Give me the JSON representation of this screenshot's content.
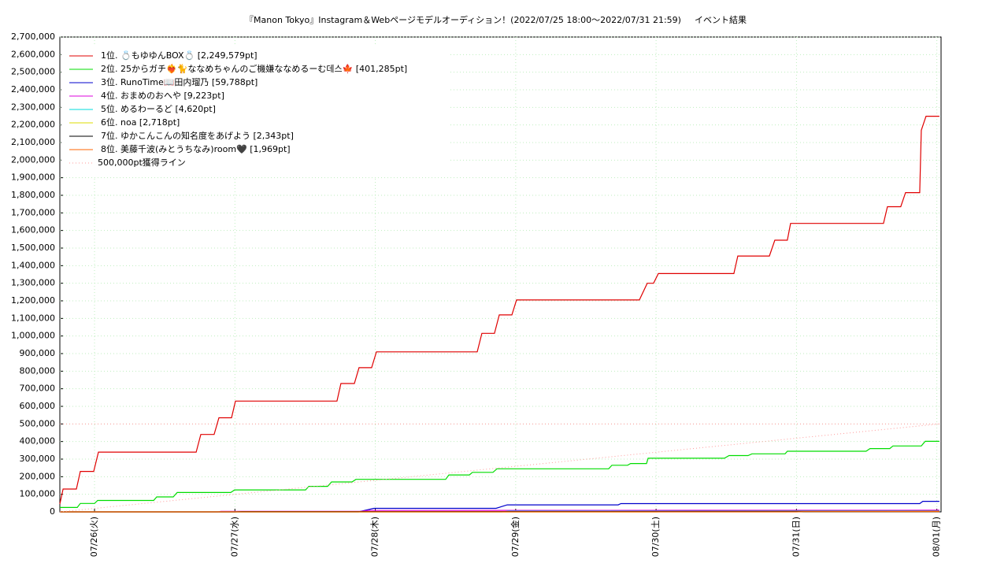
{
  "chart_data": {
    "type": "line",
    "title": "『Manon Tokyo』Instagram＆Webページモデルオーディション！(2022/07/25 18:00〜2022/07/31 21:59)",
    "subtitle": "イベント結果",
    "xlim": [
      0.753,
      7.03
    ],
    "xticks": [
      {
        "value": 1,
        "label": "07/26(火)"
      },
      {
        "value": 2,
        "label": "07/27(水)"
      },
      {
        "value": 3,
        "label": "07/28(木)"
      },
      {
        "value": 4,
        "label": "07/29(金)"
      },
      {
        "value": 5,
        "label": "07/30(土)"
      },
      {
        "value": 6,
        "label": "07/31(日)"
      },
      {
        "value": 7,
        "label": "08/01(月)"
      }
    ],
    "ylim": [
      0,
      2700000
    ],
    "yticks": [
      0,
      {
        "value": 100000,
        "label": "100,000"
      },
      {
        "value": 200000,
        "label": "200,000"
      },
      {
        "value": 300000,
        "label": "300,000"
      },
      {
        "value": 400000,
        "label": "400,000"
      },
      {
        "value": 500000,
        "label": "500,000"
      },
      {
        "value": 600000,
        "label": "600,000"
      },
      {
        "value": 700000,
        "label": "700,000"
      },
      {
        "value": 800000,
        "label": "800,000"
      },
      {
        "value": 900000,
        "label": "900,000"
      },
      {
        "value": 1000000,
        "label": "1,000,000"
      },
      {
        "value": 1100000,
        "label": "1,100,000"
      },
      {
        "value": 1200000,
        "label": "1,200,000"
      },
      {
        "value": 1300000,
        "label": "1,300,000"
      },
      {
        "value": 1400000,
        "label": "1,400,000"
      },
      {
        "value": 1500000,
        "label": "1,500,000"
      },
      {
        "value": 1600000,
        "label": "1,600,000"
      },
      {
        "value": 1700000,
        "label": "1,700,000"
      },
      {
        "value": 1800000,
        "label": "1,800,000"
      },
      {
        "value": 1900000,
        "label": "1,900,000"
      },
      {
        "value": 2000000,
        "label": "2,000,000"
      },
      {
        "value": 2100000,
        "label": "2,100,000"
      },
      {
        "value": 2200000,
        "label": "2,200,000"
      },
      {
        "value": 2300000,
        "label": "2,300,000"
      },
      {
        "value": 2400000,
        "label": "2,400,000"
      },
      {
        "value": 2500000,
        "label": "2,500,000"
      },
      {
        "value": 2600000,
        "label": "2,600,000"
      },
      {
        "value": 2700000,
        "label": "2,700,000"
      }
    ],
    "grid": true,
    "legend": "upper-left",
    "reference_line": 500000,
    "series": [
      {
        "name": "1位. 💍もゆゆんBOX💍 [2,249,579pt]",
        "color": "#e00000",
        "x": [
          0.753,
          0.776,
          0.871,
          0.899,
          0.994,
          1.028,
          1.724,
          1.757,
          1.852,
          1.886,
          1.976,
          2.004,
          2.727,
          2.755,
          2.851,
          2.884,
          2.974,
          3.008,
          3.726,
          3.759,
          3.849,
          3.883,
          3.973,
          4.006,
          4.881,
          4.937,
          4.982,
          5.016,
          5.554,
          5.582,
          5.807,
          5.846,
          5.935,
          5.958,
          6.62,
          6.648,
          6.743,
          6.777,
          6.878,
          6.889,
          6.923,
          7.018
        ],
        "values": [
          45000,
          130000,
          130000,
          230000,
          230000,
          340000,
          340000,
          440000,
          440000,
          535000,
          535000,
          630000,
          630000,
          730000,
          730000,
          820000,
          820000,
          910000,
          910000,
          1015000,
          1015000,
          1120000,
          1120000,
          1205000,
          1205000,
          1300000,
          1300000,
          1355000,
          1355000,
          1455000,
          1455000,
          1545000,
          1545000,
          1640000,
          1640000,
          1735000,
          1735000,
          1815000,
          1815000,
          2170000,
          2249579,
          2249579
        ]
      },
      {
        "name": "2位. 25からガチ❤️‍🔥🐈ななめちゃんのご機嫌ななめるーむ데스🍁 [401,285pt]",
        "color": "#00dd00",
        "x": [
          0.753,
          0.877,
          0.899,
          1.0,
          1.022,
          1.421,
          1.443,
          1.561,
          1.589,
          1.97,
          1.998,
          2.503,
          2.526,
          2.66,
          2.688,
          2.834,
          2.862,
          3.501,
          3.524,
          3.67,
          3.692,
          3.838,
          3.866,
          4.662,
          4.685,
          4.797,
          4.819,
          4.932,
          4.943,
          5.487,
          5.52,
          5.655,
          5.683,
          5.919,
          5.935,
          6.496,
          6.524,
          6.665,
          6.687,
          6.889,
          6.917,
          7.018
        ],
        "values": [
          25000,
          25000,
          48000,
          48000,
          65000,
          65000,
          85000,
          85000,
          110000,
          110000,
          125000,
          125000,
          145000,
          145000,
          170000,
          170000,
          185000,
          185000,
          210000,
          210000,
          225000,
          225000,
          245000,
          245000,
          265000,
          265000,
          275000,
          275000,
          305000,
          305000,
          320000,
          320000,
          330000,
          330000,
          345000,
          345000,
          360000,
          360000,
          375000,
          375000,
          401285,
          401285
        ]
      },
      {
        "name": "3位. RunoTime📖田内瑠乃 [59,788pt]",
        "color": "#0000cc",
        "x": [
          0.753,
          2.88,
          2.99,
          3.86,
          3.94,
          4.73,
          4.75,
          6.878,
          6.9,
          7.018
        ],
        "values": [
          0,
          0,
          20000,
          20000,
          40000,
          40000,
          47000,
          47000,
          59788,
          59788
        ]
      },
      {
        "name": "4位. おまめのおへや [9,223pt]",
        "color": "#dd00dd",
        "x": [
          0.753,
          1.88,
          1.9,
          2.9,
          2.95,
          7.018
        ],
        "values": [
          0,
          0,
          3000,
          3000,
          8000,
          9223
        ]
      },
      {
        "name": "5位. めるわーるど [4,620pt]",
        "color": "#00dddd",
        "x": [
          0.753,
          3.9,
          3.95,
          7.018
        ],
        "values": [
          0,
          0,
          4000,
          4620
        ]
      },
      {
        "name": "6位. noa [2,718pt]",
        "color": "#dddd00",
        "x": [
          0.753,
          5.0,
          5.05,
          7.018
        ],
        "values": [
          0,
          0,
          2000,
          2718
        ]
      },
      {
        "name": "7位. ゆかこんこんの知名度をあげよう [2,343pt]",
        "color": "#000000",
        "x": [
          0.753,
          2.0,
          2.05,
          7.018
        ],
        "values": [
          0,
          0,
          2000,
          2343
        ]
      },
      {
        "name": "8位. 美藤千波(みとうちなみ)room🖤 [1,969pt]",
        "color": "#ff6600",
        "x": [
          0.753,
          6.0,
          6.05,
          7.018
        ],
        "values": [
          0,
          0,
          1500,
          1969
        ]
      },
      {
        "name": "500,000pt獲得ライン",
        "color": "#ff9999",
        "dashed": true,
        "x": [
          0.753,
          7.018
        ],
        "values": [
          0,
          500000
        ]
      }
    ]
  }
}
